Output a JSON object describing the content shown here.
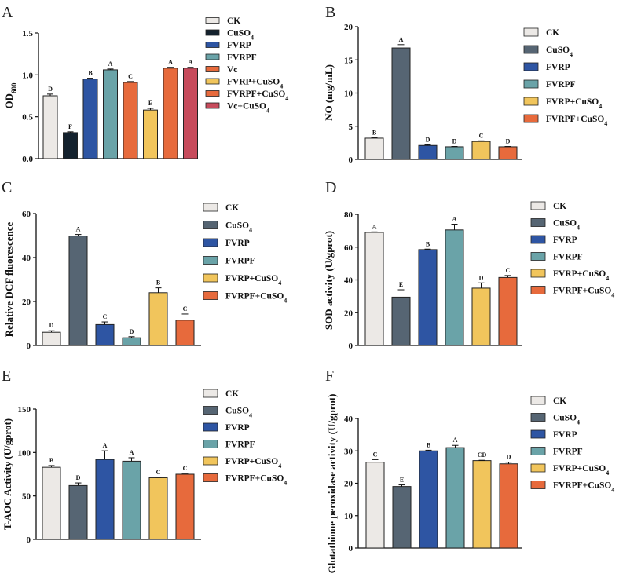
{
  "figure_title": "",
  "chart_data": [
    {
      "type": "bar",
      "panel": "A",
      "ylabel": "OD",
      "ylabel_sub": "600",
      "ylim": [
        0,
        1.5
      ],
      "yticks": [
        "0.0",
        "0.5",
        "1.0",
        "1.5"
      ],
      "categories": [
        "CK",
        "CuSO4",
        "FVRP",
        "FVRPF",
        "Vc",
        "FVRP+CuSO4",
        "FVRPF+CuSO4",
        "Vc+CuSO4"
      ],
      "values": [
        0.75,
        0.31,
        0.95,
        1.06,
        0.91,
        0.58,
        1.08,
        1.08
      ],
      "errors": [
        0.02,
        0.01,
        0.01,
        0.01,
        0.01,
        0.02,
        0.01,
        0.01
      ],
      "significance": [
        "D",
        "F",
        "B",
        "A",
        "C",
        "E",
        "A",
        "A"
      ],
      "colors": [
        "#ece9e6",
        "#14222e",
        "#2e55a3",
        "#6aa3a8",
        "#e76a3c",
        "#f1c55c",
        "#e76a3c",
        "#c74b5c"
      ]
    },
    {
      "type": "bar",
      "panel": "B",
      "ylabel": "NO (mg/mL)",
      "ylim": [
        0,
        20
      ],
      "yticks": [
        "0",
        "5",
        "10",
        "15",
        "20"
      ],
      "categories": [
        "CK",
        "CuSO4",
        "FVRP",
        "FVRPF",
        "FVRP+CuSO4",
        "FVRPF+CuSO4"
      ],
      "values": [
        3.2,
        16.8,
        2.1,
        1.9,
        2.7,
        1.9
      ],
      "errors": [
        0.05,
        0.5,
        0.1,
        0.05,
        0.1,
        0.05
      ],
      "significance": [
        "B",
        "A",
        "D",
        "D",
        "C",
        "D"
      ],
      "colors": [
        "#ece9e6",
        "#566573",
        "#2e55a3",
        "#6aa3a8",
        "#f1c55c",
        "#e76a3c"
      ]
    },
    {
      "type": "bar",
      "panel": "C",
      "ylabel": "Relative DCF fluorescence",
      "ylim": [
        0,
        60
      ],
      "yticks": [
        "0",
        "20",
        "40",
        "60"
      ],
      "categories": [
        "CK",
        "CuSO4",
        "FVRP",
        "FVRPF",
        "FVRP+CuSO4",
        "FVRPF+CuSO4"
      ],
      "values": [
        6,
        49.8,
        9.5,
        3.5,
        24,
        11.5
      ],
      "errors": [
        0.7,
        0.7,
        1.2,
        0.5,
        2.2,
        2.8
      ],
      "significance": [
        "D",
        "A",
        "C",
        "D",
        "B",
        "C"
      ],
      "colors": [
        "#ece9e6",
        "#566573",
        "#2e55a3",
        "#6aa3a8",
        "#f1c55c",
        "#e76a3c"
      ]
    },
    {
      "type": "bar",
      "panel": "D",
      "ylabel": "SOD activity (U/gprot)",
      "ylim": [
        0,
        80
      ],
      "yticks": [
        "0",
        "20",
        "40",
        "60",
        "80"
      ],
      "categories": [
        "CK",
        "CuSO4",
        "FVRP",
        "FVRPF",
        "FVRP+CuSO4",
        "FVRPF+CuSO4"
      ],
      "values": [
        69,
        29.5,
        58.5,
        70.5,
        35,
        41.5
      ],
      "errors": [
        0.3,
        4.5,
        0.3,
        3.5,
        3.2,
        1.2
      ],
      "significance": [
        "A",
        "E",
        "B",
        "A",
        "D",
        "C"
      ],
      "colors": [
        "#ece9e6",
        "#566573",
        "#2e55a3",
        "#6aa3a8",
        "#f1c55c",
        "#e76a3c"
      ]
    },
    {
      "type": "bar",
      "panel": "E",
      "ylabel": "T-AOC Activity (U/gprot)",
      "ylim": [
        0,
        150
      ],
      "yticks": [
        "0",
        "50",
        "100",
        "150"
      ],
      "categories": [
        "CK",
        "CuSO4",
        "FVRP",
        "FVRPF",
        "FVRP+CuSO4",
        "FVRPF+CuSO4"
      ],
      "values": [
        83,
        62,
        92,
        90,
        71,
        75
      ],
      "errors": [
        2,
        3,
        10,
        4,
        0.5,
        1
      ],
      "significance": [
        "B",
        "D",
        "A",
        "A",
        "C",
        "C"
      ],
      "colors": [
        "#ece9e6",
        "#566573",
        "#2e55a3",
        "#6aa3a8",
        "#f1c55c",
        "#e76a3c"
      ]
    },
    {
      "type": "bar",
      "panel": "F",
      "ylabel": "Glutathione peroxidase activity (U/gprot)",
      "ylim": [
        0,
        40
      ],
      "yticks": [
        "0",
        "10",
        "20",
        "30",
        "40"
      ],
      "categories": [
        "CK",
        "CuSO4",
        "FVRP",
        "FVRPF",
        "FVRP+CuSO4",
        "FVRPF+CuSO4"
      ],
      "values": [
        26.5,
        19,
        30,
        31,
        27,
        26
      ],
      "errors": [
        0.8,
        0.5,
        0.2,
        0.7,
        0.1,
        0.5
      ],
      "significance": [
        "C",
        "E",
        "B",
        "A",
        "CD",
        "D"
      ],
      "colors": [
        "#ece9e6",
        "#566573",
        "#2e55a3",
        "#6aa3a8",
        "#f1c55c",
        "#e76a3c"
      ]
    }
  ]
}
